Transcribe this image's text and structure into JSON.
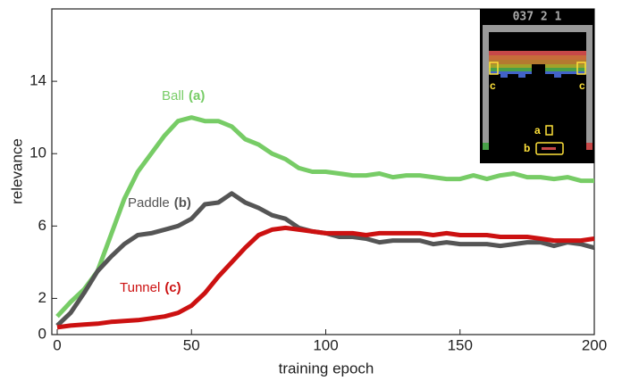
{
  "chart_data": {
    "type": "line",
    "xlabel": "training epoch",
    "ylabel": "relevance",
    "x": [
      0,
      5,
      10,
      15,
      20,
      25,
      30,
      35,
      40,
      45,
      50,
      55,
      60,
      65,
      70,
      75,
      80,
      85,
      90,
      95,
      100,
      105,
      110,
      115,
      120,
      125,
      130,
      135,
      140,
      145,
      150,
      155,
      160,
      165,
      170,
      175,
      180,
      185,
      190,
      195,
      200
    ],
    "series": [
      {
        "name": "Ball",
        "tag": "(a)",
        "color": "#77cc66",
        "values": [
          1,
          1.8,
          2.5,
          3.5,
          5.5,
          7.5,
          9,
          10,
          11,
          11.8,
          12,
          11.8,
          11.8,
          11.5,
          10.8,
          10.5,
          10,
          9.7,
          9.2,
          9,
          9,
          8.9,
          8.8,
          8.8,
          8.9,
          8.7,
          8.8,
          8.8,
          8.7,
          8.6,
          8.6,
          8.8,
          8.6,
          8.8,
          8.9,
          8.7,
          8.7,
          8.6,
          8.7,
          8.5,
          8.5
        ]
      },
      {
        "name": "Paddle",
        "tag": "(b)",
        "color": "#555555",
        "values": [
          0.5,
          1.2,
          2.3,
          3.5,
          4.3,
          5,
          5.5,
          5.6,
          5.8,
          6,
          6.4,
          7.2,
          7.3,
          7.8,
          7.3,
          7,
          6.6,
          6.4,
          5.9,
          5.7,
          5.6,
          5.4,
          5.4,
          5.3,
          5.1,
          5.2,
          5.2,
          5.2,
          5,
          5.1,
          5,
          5,
          5,
          4.9,
          5,
          5.1,
          5.1,
          4.9,
          5.1,
          5,
          4.8
        ]
      },
      {
        "name": "Tunnel",
        "tag": "(c)",
        "color": "#cc1111",
        "values": [
          0.4,
          0.5,
          0.55,
          0.6,
          0.7,
          0.75,
          0.8,
          0.9,
          1,
          1.2,
          1.6,
          2.3,
          3.2,
          4,
          4.8,
          5.5,
          5.8,
          5.9,
          5.8,
          5.7,
          5.6,
          5.6,
          5.6,
          5.5,
          5.6,
          5.6,
          5.6,
          5.6,
          5.5,
          5.6,
          5.5,
          5.5,
          5.5,
          5.4,
          5.4,
          5.4,
          5.3,
          5.2,
          5.2,
          5.2,
          5.3
        ]
      }
    ],
    "xlim": [
      -2,
      200
    ],
    "xticks": [
      0,
      50,
      100,
      150,
      200
    ],
    "ylim": [
      0,
      18
    ],
    "yticks": [
      0,
      2,
      6,
      10,
      14
    ],
    "inset": {
      "score": "037  2  1",
      "labels": [
        "a",
        "b",
        "c",
        "c"
      ]
    }
  }
}
